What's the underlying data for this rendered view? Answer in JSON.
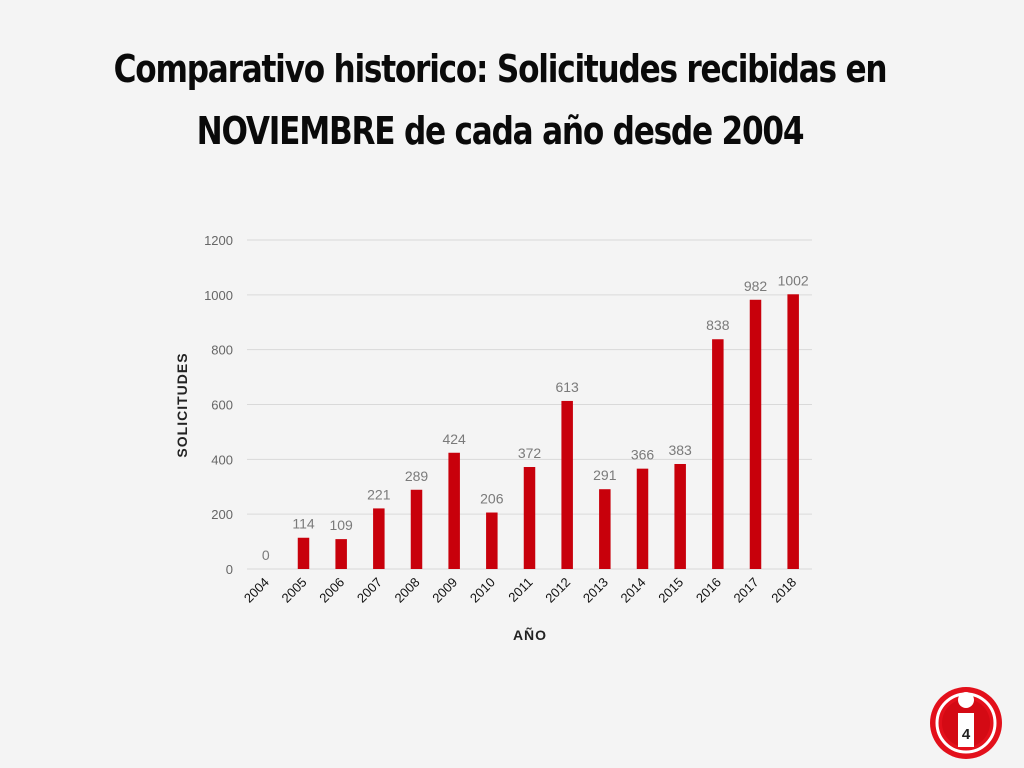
{
  "slide": {
    "title_line1": "Comparativo historico: Solicitudes recibidas en",
    "title_line2": "NOVIEMBRE de cada año desde 2004",
    "page_number": "4"
  },
  "colors": {
    "bar": "#c8000b",
    "grid": "#d9d9d9",
    "logo_red": "#e3101b"
  },
  "logo": {
    "icon": "info-i-icon"
  },
  "chart_data": {
    "type": "bar",
    "title": "",
    "xlabel": "AÑO",
    "ylabel": "SOLICITUDES",
    "ylim": [
      0,
      1200
    ],
    "yticks": [
      0,
      200,
      400,
      600,
      800,
      1000,
      1200
    ],
    "grid": true,
    "legend": "none",
    "categories": [
      "2004",
      "2005",
      "2006",
      "2007",
      "2008",
      "2009",
      "2010",
      "2011",
      "2012",
      "2013",
      "2014",
      "2015",
      "2016",
      "2017",
      "2018"
    ],
    "values": [
      0,
      114,
      109,
      221,
      289,
      424,
      206,
      372,
      613,
      291,
      366,
      383,
      838,
      982,
      1002
    ]
  }
}
